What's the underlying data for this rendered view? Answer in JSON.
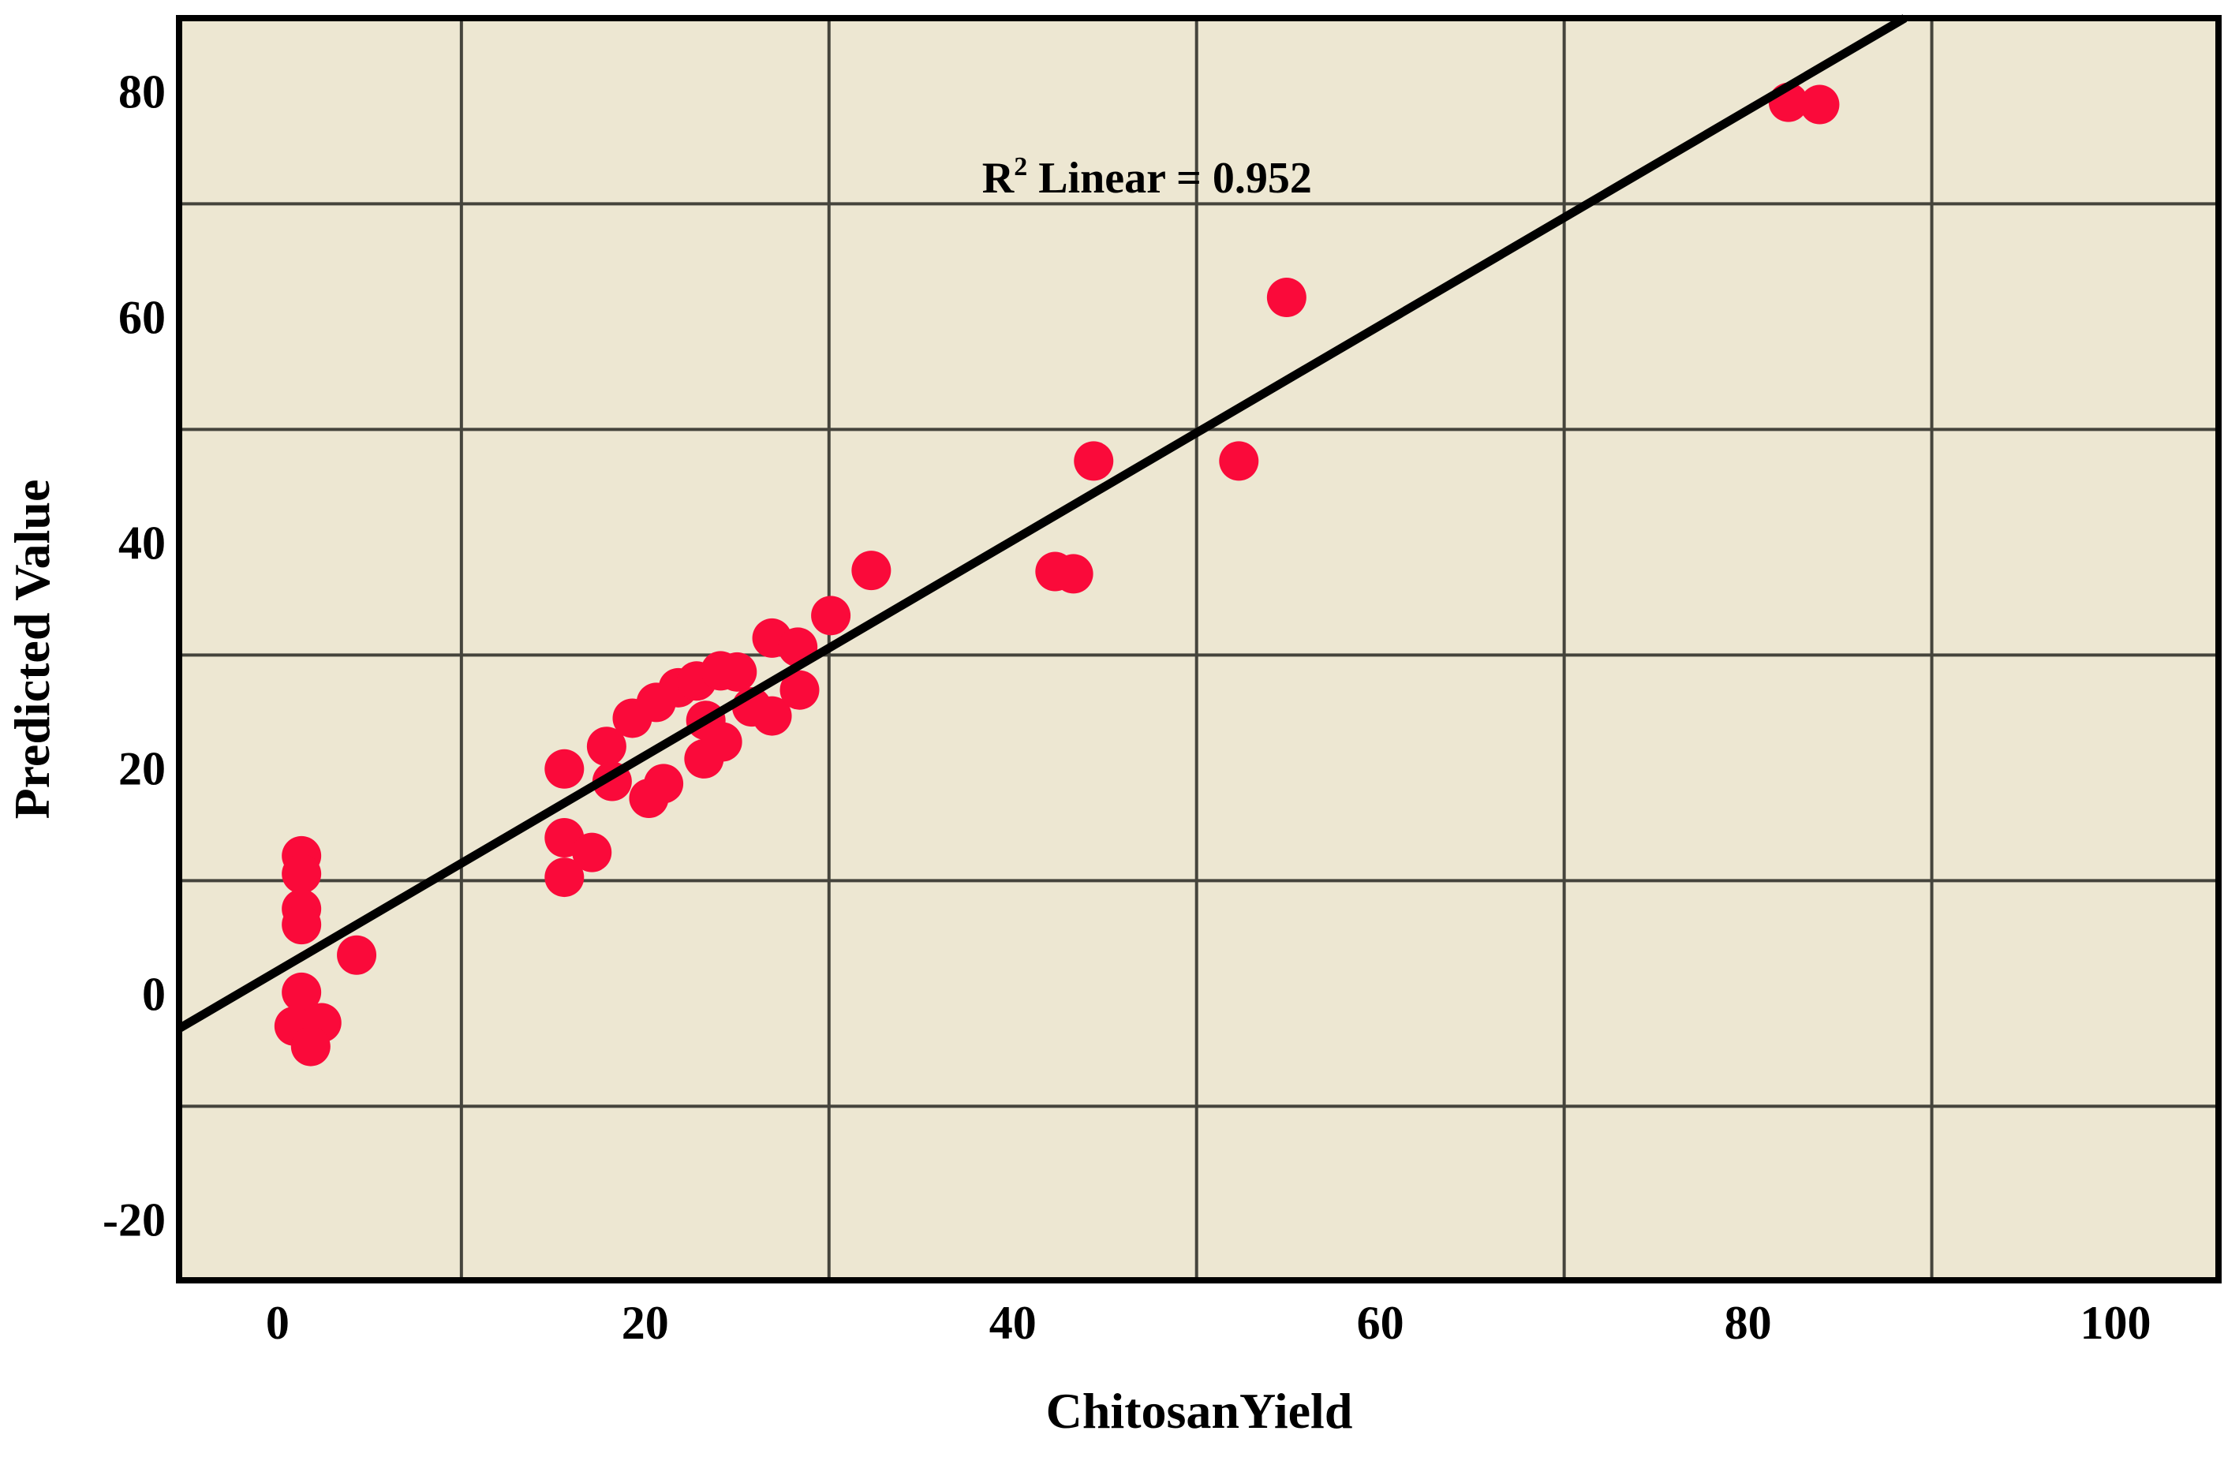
{
  "chart_data": {
    "type": "scatter",
    "title": "",
    "xlabel": "ChitosanYield",
    "ylabel": "Predicted Value",
    "annotation": {
      "base": "R",
      "superscript": "2",
      "rest": " Linear = 0.952",
      "x_value": 47.3,
      "y_value": 71.0
    },
    "xlim": [
      -5.36,
      105.6
    ],
    "ylim": [
      -25.43,
      86.46
    ],
    "x_ticks": [
      0,
      20,
      40,
      60,
      80,
      100
    ],
    "y_ticks": [
      80,
      60,
      40,
      20,
      0,
      -20
    ],
    "x_gridlines": [
      10,
      30,
      50,
      70,
      90
    ],
    "y_gridlines": [
      70,
      50,
      30,
      10,
      -10
    ],
    "grid_on": true,
    "legend": null,
    "fit_line": {
      "slope": 0.954,
      "intercept": 2.0
    },
    "r_squared": 0.952,
    "points": [
      [
        1.3,
        12.2
      ],
      [
        1.3,
        10.6
      ],
      [
        1.3,
        7.5
      ],
      [
        1.3,
        6.1
      ],
      [
        4.3,
        3.4
      ],
      [
        1.3,
        0.1
      ],
      [
        0.9,
        -2.9
      ],
      [
        2.4,
        -2.6
      ],
      [
        1.8,
        -4.7
      ],
      [
        15.6,
        19.9
      ],
      [
        15.6,
        13.8
      ],
      [
        17.1,
        12.5
      ],
      [
        15.6,
        10.3
      ],
      [
        17.9,
        21.9
      ],
      [
        18.2,
        18.8
      ],
      [
        19.3,
        24.4
      ],
      [
        20.2,
        17.3
      ],
      [
        21.0,
        18.6
      ],
      [
        20.6,
        25.8
      ],
      [
        21.8,
        27.1
      ],
      [
        22.8,
        27.7
      ],
      [
        23.3,
        24.2
      ],
      [
        23.2,
        20.8
      ],
      [
        24.2,
        22.3
      ],
      [
        24.1,
        28.6
      ],
      [
        25.0,
        28.5
      ],
      [
        25.8,
        25.4
      ],
      [
        26.9,
        24.6
      ],
      [
        26.9,
        31.5
      ],
      [
        28.3,
        30.7
      ],
      [
        28.4,
        26.9
      ],
      [
        30.1,
        33.5
      ],
      [
        32.3,
        37.5
      ],
      [
        42.3,
        37.4
      ],
      [
        43.3,
        37.2
      ],
      [
        44.4,
        47.2
      ],
      [
        52.3,
        47.2
      ],
      [
        54.9,
        61.7
      ],
      [
        82.2,
        79.0
      ],
      [
        83.9,
        78.8
      ]
    ],
    "colors": {
      "page_bg": "#ffffff",
      "plot_bg": "#ede7d2",
      "point": "#fa0a3a",
      "fit_line": "#000000",
      "grid": "#45443c",
      "border": "#000000",
      "text": "#000000"
    }
  }
}
